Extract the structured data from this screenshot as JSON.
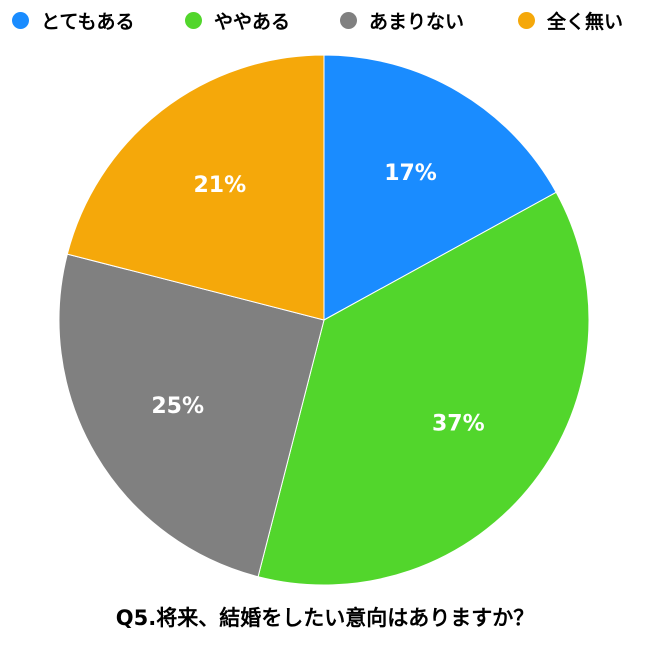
{
  "chart_data": {
    "type": "pie",
    "title": "Q5.将来、結婚をしたい意向はありますか？",
    "legend_position": "top",
    "slices": [
      {
        "label": "とてもある",
        "value": 17,
        "value_label": "17%",
        "color": "#1a8cff"
      },
      {
        "label": "ややある",
        "value": 37,
        "value_label": "37%",
        "color": "#52d62c"
      },
      {
        "label": "あまりない",
        "value": 25,
        "value_label": "25%",
        "color": "#808080"
      },
      {
        "label": "全く無い",
        "value": 21,
        "value_label": "21%",
        "color": "#f5a80a"
      }
    ]
  }
}
